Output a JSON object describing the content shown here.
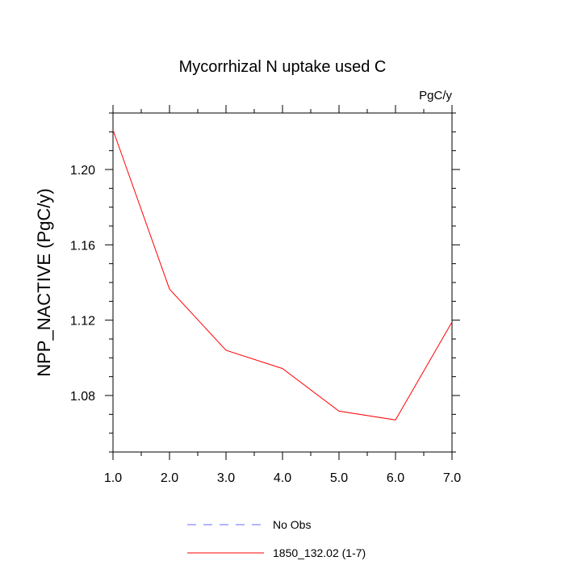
{
  "chart_data": {
    "type": "line",
    "title": "Mycorrhizal N uptake used C",
    "units": "PgC/y",
    "ylabel": "NPP_NACTIVE  (PgC/y)",
    "xlabel": "",
    "xlim": [
      1.0,
      7.0
    ],
    "ylim": [
      1.05,
      1.23
    ],
    "x_ticks": [
      "1.0",
      "2.0",
      "3.0",
      "4.0",
      "5.0",
      "6.0",
      "7.0"
    ],
    "y_ticks": [
      "1.08",
      "1.12",
      "1.16",
      "1.20"
    ],
    "y_tick_values": [
      1.08,
      1.12,
      1.16,
      1.2
    ],
    "series": [
      {
        "name": "1850_132.02 (1-7)",
        "color": "#ff0000",
        "style": "solid",
        "x": [
          1,
          2,
          3,
          4,
          5,
          6,
          7
        ],
        "y": [
          1.221,
          1.1365,
          1.104,
          1.0943,
          1.0717,
          1.067,
          1.119
        ]
      }
    ],
    "legend": [
      {
        "label": "No Obs",
        "color": "#6a6aff",
        "style": "dashed"
      },
      {
        "label": "1850_132.02 (1-7)",
        "color": "#ff0000",
        "style": "solid"
      }
    ],
    "legend_position": "bottom",
    "grid": false
  }
}
